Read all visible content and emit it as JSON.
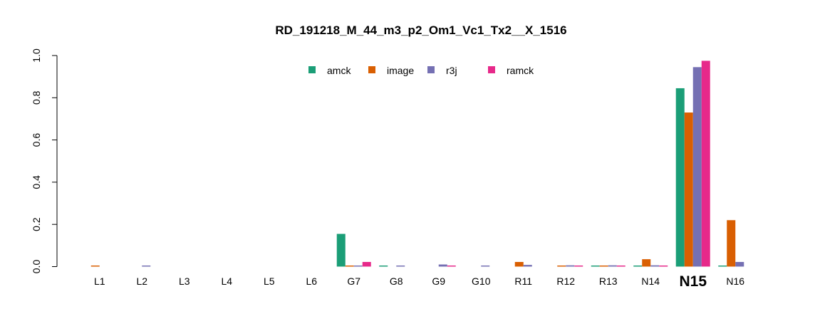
{
  "chart_data": {
    "type": "bar",
    "title": "RD_191218_M_44_m3_p2_Om1_Vc1_Tx2__X_1516",
    "xlabel": "",
    "ylabel": "",
    "ylim": [
      0,
      1.0
    ],
    "yticks": [
      "0.0",
      "0.2",
      "0.4",
      "0.6",
      "0.8",
      "1.0"
    ],
    "categories": [
      "L1",
      "L2",
      "L3",
      "L4",
      "L5",
      "L6",
      "G7",
      "G8",
      "G9",
      "G10",
      "R11",
      "R12",
      "R13",
      "N14",
      "N15",
      "N16"
    ],
    "highlight_category": "N15",
    "highlight_color": "#ff0000",
    "grid": false,
    "legend_position": "top-center",
    "series": [
      {
        "name": "amck",
        "color": "#1b9e77",
        "values": [
          0,
          0,
          0,
          0,
          0,
          0,
          0.155,
          0.003,
          0,
          0,
          0,
          0,
          0.003,
          0.003,
          0.845,
          0.003
        ]
      },
      {
        "name": "image",
        "color": "#d95f02",
        "values": [
          0.003,
          0,
          0,
          0,
          0,
          0,
          0.003,
          0,
          0,
          0,
          0.022,
          0.003,
          0.003,
          0.035,
          0.73,
          0.22
        ]
      },
      {
        "name": "r3j",
        "color": "#7570b3",
        "values": [
          0,
          0.003,
          0,
          0,
          0,
          0,
          0.003,
          0.003,
          0.01,
          0.003,
          0.008,
          0.006,
          0.006,
          0.006,
          0.945,
          0.022
        ]
      },
      {
        "name": "ramck",
        "color": "#e7298a",
        "values": [
          0,
          0,
          0,
          0,
          0,
          0,
          0.022,
          0,
          0.003,
          0,
          0,
          0.003,
          0.003,
          0.003,
          0.975,
          0
        ]
      }
    ]
  }
}
